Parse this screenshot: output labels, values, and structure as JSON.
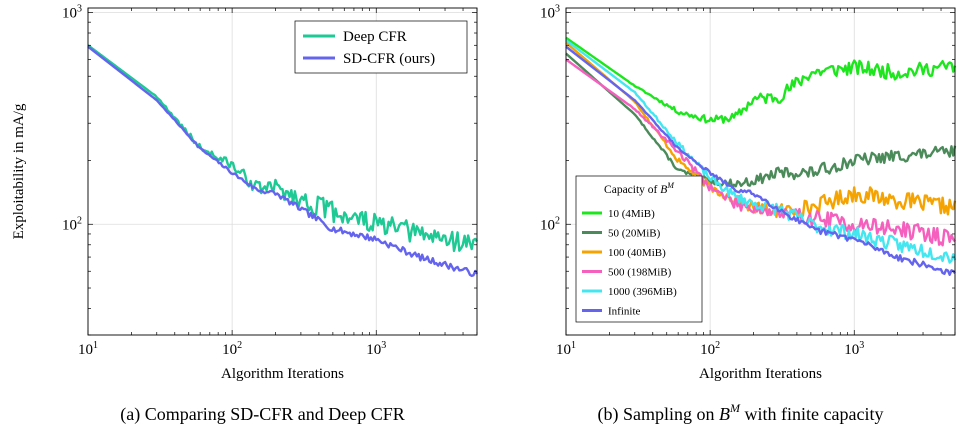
{
  "chart_data": [
    {
      "type": "line",
      "caption": "(a) Comparing SD-CFR and Deep CFR",
      "xlabel": "Algorithm Iterations",
      "ylabel": "Exploitability in mA/g",
      "xscale": "log",
      "yscale": "log",
      "xlim": [
        10,
        5000
      ],
      "ylim": [
        30,
        1050
      ],
      "xtick_labels": [
        {
          "value": 10,
          "base": "10",
          "exp": "1"
        },
        {
          "value": 100,
          "base": "10",
          "exp": "2"
        },
        {
          "value": 1000,
          "base": "10",
          "exp": "3"
        }
      ],
      "ytick_labels": [
        {
          "value": 100,
          "base": "10",
          "exp": "2"
        },
        {
          "value": 1000,
          "base": "10",
          "exp": "3"
        }
      ],
      "grid": true,
      "legend": {
        "position": "top-right",
        "title": ""
      },
      "series": [
        {
          "name": "Deep CFR",
          "color": "#1ec994",
          "noise": 0.1,
          "seed": 3,
          "x": [
            10,
            30,
            60,
            100,
            150,
            200,
            300,
            500,
            1000,
            2000,
            5000
          ],
          "y": [
            700,
            400,
            230,
            190,
            148,
            150,
            130,
            115,
            100,
            90,
            80
          ]
        },
        {
          "name": "SD-CFR (ours)",
          "color": "#6464ee",
          "noise": 0.03,
          "seed": 7,
          "x": [
            10,
            30,
            60,
            100,
            150,
            200,
            300,
            500,
            1000,
            2000,
            5000
          ],
          "y": [
            690,
            385,
            228,
            175,
            145,
            140,
            118,
            95,
            85,
            70,
            58
          ]
        }
      ]
    },
    {
      "type": "line",
      "caption_prefix": "(b) Sampling on ",
      "caption_math": "B",
      "caption_sup": "M",
      "caption_suffix": " with finite capacity",
      "xlabel": "Algorithm Iterations",
      "ylabel": "",
      "xscale": "log",
      "yscale": "log",
      "xlim": [
        10,
        5000
      ],
      "ylim": [
        30,
        1050
      ],
      "xtick_labels": [
        {
          "value": 10,
          "base": "10",
          "exp": "1"
        },
        {
          "value": 100,
          "base": "10",
          "exp": "2"
        },
        {
          "value": 1000,
          "base": "10",
          "exp": "3"
        }
      ],
      "ytick_labels": [
        {
          "value": 100,
          "base": "10",
          "exp": "2"
        },
        {
          "value": 1000,
          "base": "10",
          "exp": "3"
        }
      ],
      "grid": true,
      "legend": {
        "position": "lower-left",
        "title": "Capacity of ",
        "title_math": "B",
        "title_sup": "M"
      },
      "series": [
        {
          "name": "10 (4MiB)",
          "color": "#1ee61e",
          "noise": 0.07,
          "seed": 11,
          "x": [
            10,
            30,
            60,
            100,
            150,
            200,
            300,
            500,
            1000,
            2000,
            5000
          ],
          "y": [
            760,
            450,
            340,
            310,
            320,
            390,
            400,
            520,
            550,
            520,
            560
          ]
        },
        {
          "name": "50 (20MiB)",
          "color": "#4b8b5a",
          "noise": 0.06,
          "seed": 13,
          "x": [
            10,
            30,
            60,
            100,
            150,
            200,
            300,
            500,
            1000,
            2000,
            5000
          ],
          "y": [
            640,
            330,
            180,
            160,
            155,
            160,
            175,
            175,
            200,
            210,
            220
          ]
        },
        {
          "name": "100 (40MiB)",
          "color": "#f5a300",
          "noise": 0.08,
          "seed": 17,
          "x": [
            10,
            30,
            60,
            100,
            150,
            200,
            300,
            500,
            1000,
            2000,
            5000
          ],
          "y": [
            720,
            380,
            200,
            150,
            130,
            120,
            115,
            120,
            140,
            130,
            120
          ]
        },
        {
          "name": "500 (198MiB)",
          "color": "#f55fbe",
          "noise": 0.08,
          "seed": 19,
          "x": [
            10,
            30,
            60,
            100,
            150,
            200,
            300,
            500,
            1000,
            2000,
            5000
          ],
          "y": [
            600,
            350,
            220,
            150,
            125,
            120,
            112,
            108,
            100,
            95,
            85
          ]
        },
        {
          "name": "1000 (396MiB)",
          "color": "#44e6f0",
          "noise": 0.07,
          "seed": 23,
          "x": [
            10,
            30,
            60,
            100,
            150,
            200,
            300,
            500,
            1000,
            2000,
            5000
          ],
          "y": [
            740,
            420,
            240,
            165,
            135,
            125,
            118,
            100,
            90,
            80,
            70
          ]
        },
        {
          "name": "Infinite",
          "color": "#6464ee",
          "noise": 0.03,
          "seed": 29,
          "x": [
            10,
            30,
            60,
            100,
            150,
            200,
            300,
            500,
            1000,
            2000,
            5000
          ],
          "y": [
            690,
            385,
            228,
            175,
            145,
            140,
            118,
            95,
            85,
            70,
            58
          ]
        }
      ]
    }
  ]
}
